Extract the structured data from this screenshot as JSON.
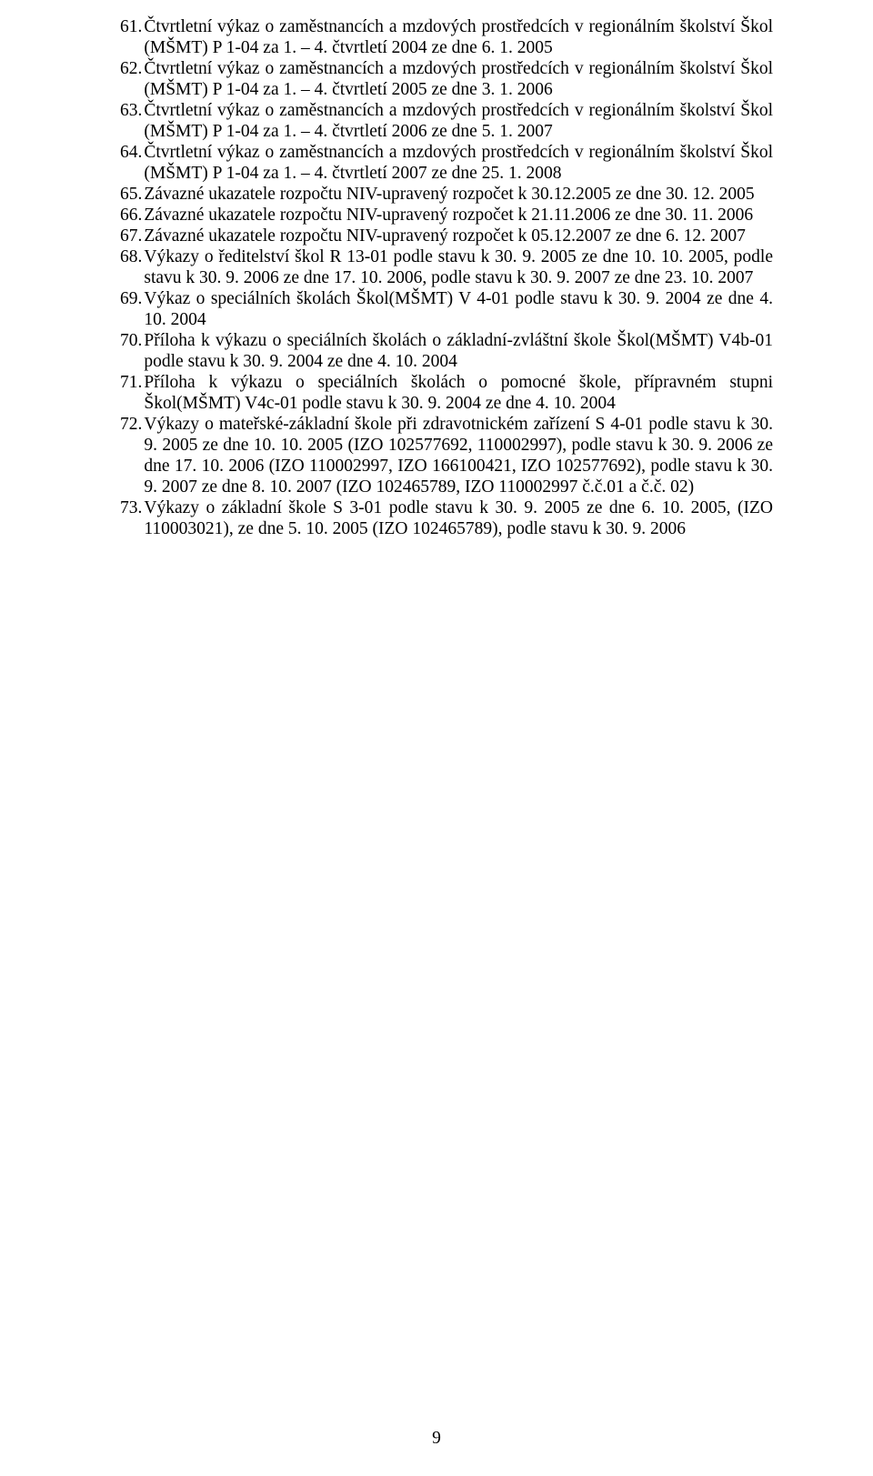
{
  "page_number": "9",
  "items": [
    {
      "num": "61.",
      "lines": [
        "Čtvrtletní výkaz o zaměstnancích a mzdových prostředcích v regionálním školství Škol (MŠMT) P 1-04 za 1. – 4. čtvrtletí 2004 ze dne 6. 1. 2005"
      ]
    },
    {
      "num": "62.",
      "lines": [
        "Čtvrtletní výkaz o zaměstnancích a mzdových prostředcích v regionálním školství Škol (MŠMT) P 1-04 za 1. – 4. čtvrtletí 2005 ze dne 3. 1. 2006"
      ]
    },
    {
      "num": "63.",
      "lines": [
        "Čtvrtletní výkaz o zaměstnancích a mzdových prostředcích v regionálním školství Škol (MŠMT) P 1-04 za 1. – 4. čtvrtletí 2006 ze dne 5. 1. 2007"
      ]
    },
    {
      "num": "64.",
      "lines": [
        "Čtvrtletní výkaz o zaměstnancích a mzdových prostředcích v regionálním školství Škol (MŠMT) P 1-04 za 1. – 4. čtvrtletí 2007 ze dne 25. 1. 2008"
      ]
    },
    {
      "num": "65.",
      "lines": [
        "Závazné ukazatele rozpočtu NIV-upravený rozpočet k 30.12.2005 ze dne 30. 12. 2005"
      ]
    },
    {
      "num": "66.",
      "lines": [
        "Závazné ukazatele rozpočtu NIV-upravený rozpočet k 21.11.2006 ze dne 30. 11. 2006"
      ]
    },
    {
      "num": "67.",
      "lines": [
        "Závazné ukazatele rozpočtu NIV-upravený rozpočet k 05.12.2007 ze dne 6. 12. 2007"
      ]
    },
    {
      "num": "68.",
      "lines": [
        "Výkazy o ředitelství škol R 13-01 podle stavu k 30. 9. 2005 ze dne 10. 10. 2005, podle stavu k 30. 9. 2006 ze dne 17. 10. 2006, podle stavu k 30. 9. 2007 ze dne 23. 10. 2007"
      ]
    },
    {
      "num": "69.",
      "lines": [
        "Výkaz o speciálních školách Škol(MŠMT) V 4-01 podle stavu k 30. 9. 2004 ze dne 4. 10. 2004"
      ]
    },
    {
      "num": "70.",
      "lines": [
        "Příloha k výkazu o speciálních školách o základní-zvláštní škole Škol(MŠMT) V4b-01 podle stavu k 30. 9. 2004 ze dne 4. 10. 2004"
      ]
    },
    {
      "num": "71.",
      "lines": [
        "Příloha k výkazu o speciálních školách o pomocné škole, přípravném stupni Škol(MŠMT) V4c-01 podle stavu k 30. 9. 2004 ze dne 4. 10. 2004"
      ]
    },
    {
      "num": "72.",
      "lines": [
        "Výkazy o mateřské-základní škole při zdravotnickém zařízení S 4-01 podle stavu k 30. 9. 2005 ze dne 10. 10. 2005 (IZO 102577692, 110002997), podle stavu k 30. 9. 2006 ze dne 17. 10. 2006 (IZO 110002997, IZO 166100421, IZO 102577692), podle stavu k 30. 9. 2007 ze dne 8. 10. 2007 (IZO 102465789, IZO 110002997 č.č.01 a č.č. 02)"
      ]
    },
    {
      "num": "73.",
      "lines": [
        "Výkazy o základní škole S 3-01 podle stavu k 30. 9. 2005 ze dne 6. 10. 2005, (IZO 110003021), ze dne 5. 10. 2005 (IZO 102465789), podle stavu k 30. 9. 2006"
      ]
    }
  ]
}
